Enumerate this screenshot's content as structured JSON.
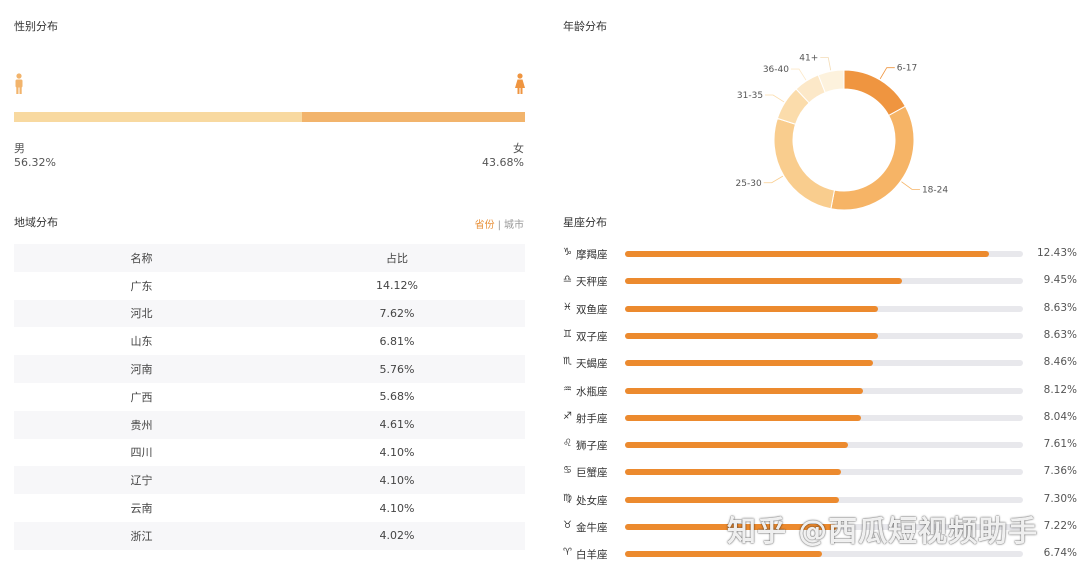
{
  "gender": {
    "title": "性别分布",
    "male": {
      "label": "男",
      "percent": "56.32%",
      "share": 56.32,
      "color": "#f8d9a0"
    },
    "female": {
      "label": "女",
      "percent": "43.68%",
      "share": 43.68,
      "color": "#f2b46c"
    }
  },
  "region": {
    "title": "地域分布",
    "tab_province": "省份",
    "tab_separator": "|",
    "tab_city": "城市",
    "columns": [
      "名称",
      "占比"
    ],
    "rows": [
      [
        "广东",
        "14.12%"
      ],
      [
        "河北",
        "7.62%"
      ],
      [
        "山东",
        "6.81%"
      ],
      [
        "河南",
        "5.76%"
      ],
      [
        "广西",
        "5.68%"
      ],
      [
        "贵州",
        "4.61%"
      ],
      [
        "四川",
        "4.10%"
      ],
      [
        "辽宁",
        "4.10%"
      ],
      [
        "云南",
        "4.10%"
      ],
      [
        "浙江",
        "4.02%"
      ]
    ]
  },
  "chart_data": [
    {
      "type": "pie",
      "title": "年龄分布",
      "donut": true,
      "categories": [
        "6-17",
        "18-24",
        "25-30",
        "31-35",
        "36-40",
        "41+"
      ],
      "values": [
        17,
        36,
        27,
        8,
        6,
        6
      ],
      "colors": [
        "#ef9540",
        "#f6b466",
        "#f9cd8e",
        "#fbdcab",
        "#fce8c8",
        "#fdf2dd"
      ]
    },
    {
      "type": "bar",
      "orientation": "horizontal",
      "title": "星座分布",
      "categories": [
        "摩羯座",
        "天秤座",
        "双鱼座",
        "双子座",
        "天蝎座",
        "水瓶座",
        "射手座",
        "狮子座",
        "巨蟹座",
        "处女座",
        "金牛座",
        "白羊座"
      ],
      "icons": [
        "♑",
        "♎",
        "♓",
        "♊",
        "♏",
        "♒",
        "♐",
        "♌",
        "♋",
        "♍",
        "♉",
        "♈"
      ],
      "values": [
        12.43,
        9.45,
        8.63,
        8.63,
        8.46,
        8.12,
        8.04,
        7.61,
        7.36,
        7.3,
        7.22,
        6.74
      ],
      "labels": [
        "12.43%",
        "9.45%",
        "8.63%",
        "8.63%",
        "8.46%",
        "8.12%",
        "8.04%",
        "7.61%",
        "7.36%",
        "7.30%",
        "7.22%",
        "6.74%"
      ],
      "xlim": [
        0,
        12.43
      ],
      "color": "#ec8a2e"
    }
  ],
  "watermark": "知乎 @西瓜短视频助手"
}
